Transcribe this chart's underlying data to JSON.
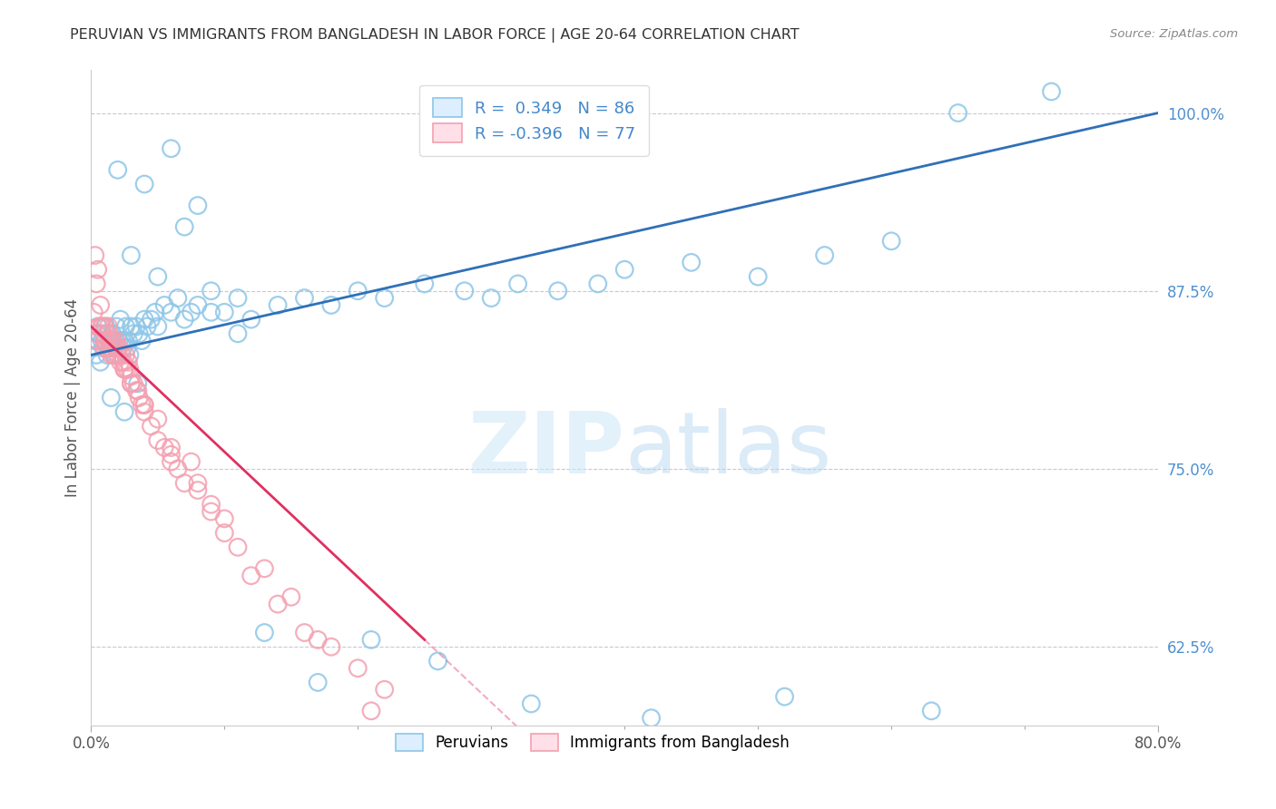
{
  "title": "PERUVIAN VS IMMIGRANTS FROM BANGLADESH IN LABOR FORCE | AGE 20-64 CORRELATION CHART",
  "source": "Source: ZipAtlas.com",
  "ylabel": "In Labor Force | Age 20-64",
  "watermark_zip": "ZIP",
  "watermark_atlas": "atlas",
  "right_yticks": [
    62.5,
    75.0,
    87.5,
    100.0
  ],
  "right_ytick_labels": [
    "62.5%",
    "75.0%",
    "87.5%",
    "100.0%"
  ],
  "blue_R": 0.349,
  "blue_N": 86,
  "pink_R": -0.396,
  "pink_N": 77,
  "legend_label_blue": "Peruvians",
  "legend_label_pink": "Immigrants from Bangladesh",
  "blue_color": "#8ec6e8",
  "pink_color": "#f4a0b0",
  "blue_line_color": "#3070b8",
  "pink_line_color": "#e03060",
  "background_color": "#ffffff",
  "grid_color": "#c8c8d8",
  "right_axis_color": "#5090d0",
  "xlim": [
    0.0,
    80.0
  ],
  "ylim": [
    57.0,
    103.0
  ],
  "blue_scatter_x": [
    0.2,
    0.3,
    0.4,
    0.5,
    0.6,
    0.7,
    0.8,
    0.9,
    1.0,
    1.1,
    1.2,
    1.3,
    1.4,
    1.5,
    1.6,
    1.7,
    1.8,
    1.9,
    2.0,
    2.1,
    2.2,
    2.3,
    2.4,
    2.5,
    2.6,
    2.7,
    2.8,
    2.9,
    3.0,
    3.2,
    3.4,
    3.6,
    3.8,
    4.0,
    4.2,
    4.5,
    4.8,
    5.0,
    5.5,
    6.0,
    6.5,
    7.0,
    7.5,
    8.0,
    9.0,
    10.0,
    11.0,
    12.0,
    14.0,
    16.0,
    18.0,
    20.0,
    22.0,
    25.0,
    28.0,
    30.0,
    32.0,
    35.0,
    38.0,
    40.0,
    45.0,
    50.0,
    55.0,
    60.0,
    65.0,
    3.0,
    5.0,
    7.0,
    9.0,
    11.0,
    2.0,
    4.0,
    6.0,
    8.0,
    3.5,
    13.0,
    17.0,
    21.0,
    26.0,
    33.0,
    42.0,
    52.0,
    63.0,
    72.0,
    1.5,
    2.5
  ],
  "blue_scatter_y": [
    83.5,
    84.0,
    83.0,
    85.0,
    84.5,
    82.5,
    84.0,
    83.5,
    84.0,
    85.0,
    83.0,
    84.5,
    83.5,
    84.0,
    84.5,
    83.0,
    84.0,
    85.0,
    83.5,
    84.0,
    85.5,
    84.0,
    83.5,
    84.0,
    85.0,
    83.5,
    84.0,
    83.0,
    85.0,
    84.5,
    85.0,
    84.5,
    84.0,
    85.5,
    85.0,
    85.5,
    86.0,
    85.0,
    86.5,
    86.0,
    87.0,
    85.5,
    86.0,
    86.5,
    87.5,
    86.0,
    87.0,
    85.5,
    86.5,
    87.0,
    86.5,
    87.5,
    87.0,
    88.0,
    87.5,
    87.0,
    88.0,
    87.5,
    88.0,
    89.0,
    89.5,
    88.5,
    90.0,
    91.0,
    100.0,
    90.0,
    88.5,
    92.0,
    86.0,
    84.5,
    96.0,
    95.0,
    97.5,
    93.5,
    81.0,
    63.5,
    60.0,
    63.0,
    61.5,
    58.5,
    57.5,
    59.0,
    58.0,
    101.5,
    80.0,
    79.0
  ],
  "pink_scatter_x": [
    0.2,
    0.3,
    0.4,
    0.5,
    0.6,
    0.7,
    0.8,
    0.9,
    1.0,
    1.1,
    1.2,
    1.3,
    1.4,
    1.5,
    1.6,
    1.7,
    1.8,
    1.9,
    2.0,
    2.1,
    2.2,
    2.3,
    2.4,
    2.5,
    2.6,
    2.7,
    2.8,
    2.9,
    3.0,
    3.2,
    3.4,
    3.6,
    3.8,
    4.0,
    4.5,
    5.0,
    5.5,
    6.0,
    6.5,
    7.0,
    7.5,
    8.0,
    9.0,
    10.0,
    11.0,
    12.0,
    14.0,
    16.0,
    18.0,
    20.0,
    22.0,
    0.5,
    1.0,
    1.5,
    2.0,
    2.5,
    3.0,
    3.5,
    4.0,
    5.0,
    6.0,
    8.0,
    10.0,
    13.0,
    17.0,
    21.0,
    0.4,
    0.8,
    1.2,
    1.6,
    2.0,
    2.5,
    3.0,
    4.0,
    6.0,
    9.0,
    15.0
  ],
  "pink_scatter_y": [
    86.0,
    90.0,
    88.0,
    89.0,
    85.0,
    86.5,
    85.0,
    84.5,
    85.0,
    84.0,
    84.5,
    85.0,
    84.0,
    83.5,
    84.0,
    83.0,
    83.5,
    84.0,
    83.0,
    83.5,
    82.5,
    83.0,
    82.5,
    82.0,
    83.0,
    82.0,
    82.5,
    82.0,
    81.5,
    81.0,
    80.5,
    80.0,
    79.5,
    79.0,
    78.0,
    77.0,
    76.5,
    75.5,
    75.0,
    74.0,
    75.5,
    73.5,
    72.0,
    70.5,
    69.5,
    67.5,
    65.5,
    63.5,
    62.5,
    61.0,
    59.5,
    84.0,
    83.5,
    83.0,
    83.5,
    82.0,
    81.0,
    80.5,
    79.5,
    78.5,
    76.5,
    74.0,
    71.5,
    68.0,
    63.0,
    58.0,
    84.5,
    85.0,
    83.5,
    84.0,
    83.0,
    82.0,
    81.0,
    79.5,
    76.0,
    72.5,
    66.0
  ]
}
